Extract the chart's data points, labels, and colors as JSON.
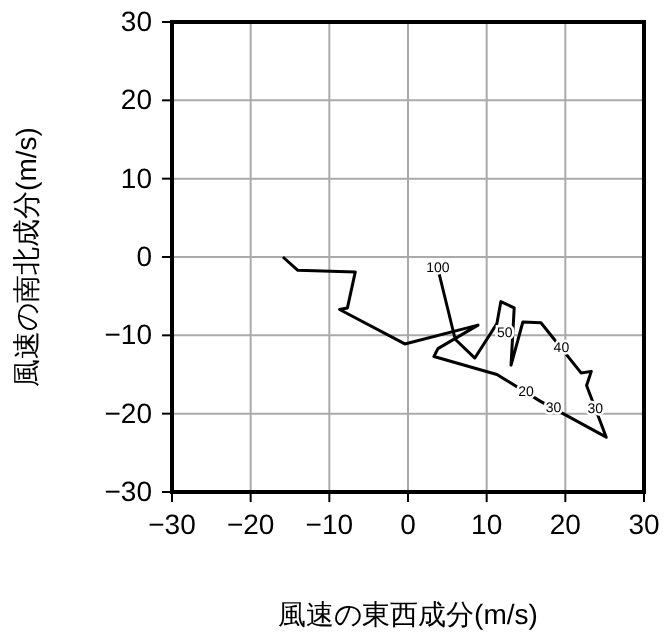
{
  "chart_data": {
    "type": "line",
    "xlabel": "風速の東西成分(m/s)",
    "ylabel": "風速の南北成分(m/s)",
    "x": [
      -15.9,
      -14,
      -6.7,
      -7.7,
      -8.7,
      -0.4,
      8.9,
      3.8,
      3.3,
      11.3,
      16.8,
      25.2,
      22.7,
      23.3,
      22,
      16.9,
      14.6,
      13.1,
      13.5,
      11.8,
      11.3,
      8.5,
      6,
      3.8
    ],
    "series": [
      {
        "color": "#000000",
        "values": [
          0,
          -1.7,
          -1.9,
          -6.5,
          -6.7,
          -11.1,
          -8.7,
          -11.7,
          -12.7,
          -15,
          -18.4,
          -23,
          -16.4,
          -14.6,
          -14.8,
          -8.4,
          -8.3,
          -13.8,
          -6.5,
          -5.7,
          -8.5,
          -12.9,
          -10.5,
          -1.5
        ]
      }
    ],
    "xlim": [
      -30,
      30
    ],
    "ylim": [
      -30,
      30
    ],
    "xticks": [
      -30,
      -20,
      -10,
      0,
      10,
      20,
      30
    ],
    "yticks": [
      -30,
      -20,
      -10,
      0,
      10,
      20,
      30
    ],
    "grid": true,
    "marker": "none",
    "line_style": "solid",
    "annotations": [
      {
        "text": "100",
        "x": 3.8,
        "y": -1.5
      },
      {
        "text": "50",
        "x": 12.3,
        "y": -9.8
      },
      {
        "text": "40",
        "x": 19.5,
        "y": -11.7
      },
      {
        "text": "20",
        "x": 15,
        "y": -17.3
      },
      {
        "text": "30",
        "x": 23.8,
        "y": -19.5
      },
      {
        "text": "30",
        "x": 18.5,
        "y": -19.3
      }
    ]
  }
}
